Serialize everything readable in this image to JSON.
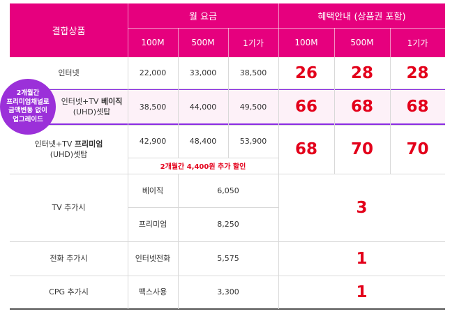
{
  "header": {
    "product_col": "결합상품",
    "monthly_fee": "월 요금",
    "benefit": "혜택안내 (상품권 포함)",
    "speeds": [
      "100M",
      "500M",
      "1기가"
    ]
  },
  "rows": [
    {
      "name": "인터넷",
      "fees": [
        "22,000",
        "33,000",
        "38,500"
      ],
      "benefits": [
        "26",
        "28",
        "28"
      ]
    },
    {
      "name_line1_prefix": "인터넷+TV ",
      "name_line1_bold": "베이직",
      "name_line2": "(UHD)셋탑",
      "fees": [
        "38,500",
        "44,000",
        "49,500"
      ],
      "benefits": [
        "66",
        "68",
        "68"
      ]
    },
    {
      "name_line1_prefix": "인터넷+TV ",
      "name_line1_bold": "프리미엄",
      "name_line2": "(UHD)셋탑",
      "fees": [
        "42,900",
        "48,400",
        "53,900"
      ],
      "note": "2개월간 4,400원 추가 할인",
      "benefits": [
        "68",
        "70",
        "70"
      ]
    }
  ],
  "tv_addon": {
    "name": "TV 추가시",
    "options": [
      {
        "label": "베이직",
        "fee": "6,050"
      },
      {
        "label": "프리미엄",
        "fee": "8,250"
      }
    ],
    "benefit": "3"
  },
  "phone_addon": {
    "name": "전화 추가시",
    "label": "인터넷전화",
    "fee": "5,575",
    "benefit": "1"
  },
  "cpg_addon": {
    "name": "CPG 추가시",
    "label": "팩스사용",
    "fee": "3,300",
    "benefit": "1"
  },
  "badge": {
    "lines": [
      "2개월간",
      "프리미엄채널로",
      "금액변동 없이",
      "업그레이드"
    ]
  },
  "colors": {
    "header_bg": "#e6007e",
    "benefit_text": "#e3001b",
    "badge_bg": "#9b30d9",
    "highlight_border": "#8a2be2"
  }
}
